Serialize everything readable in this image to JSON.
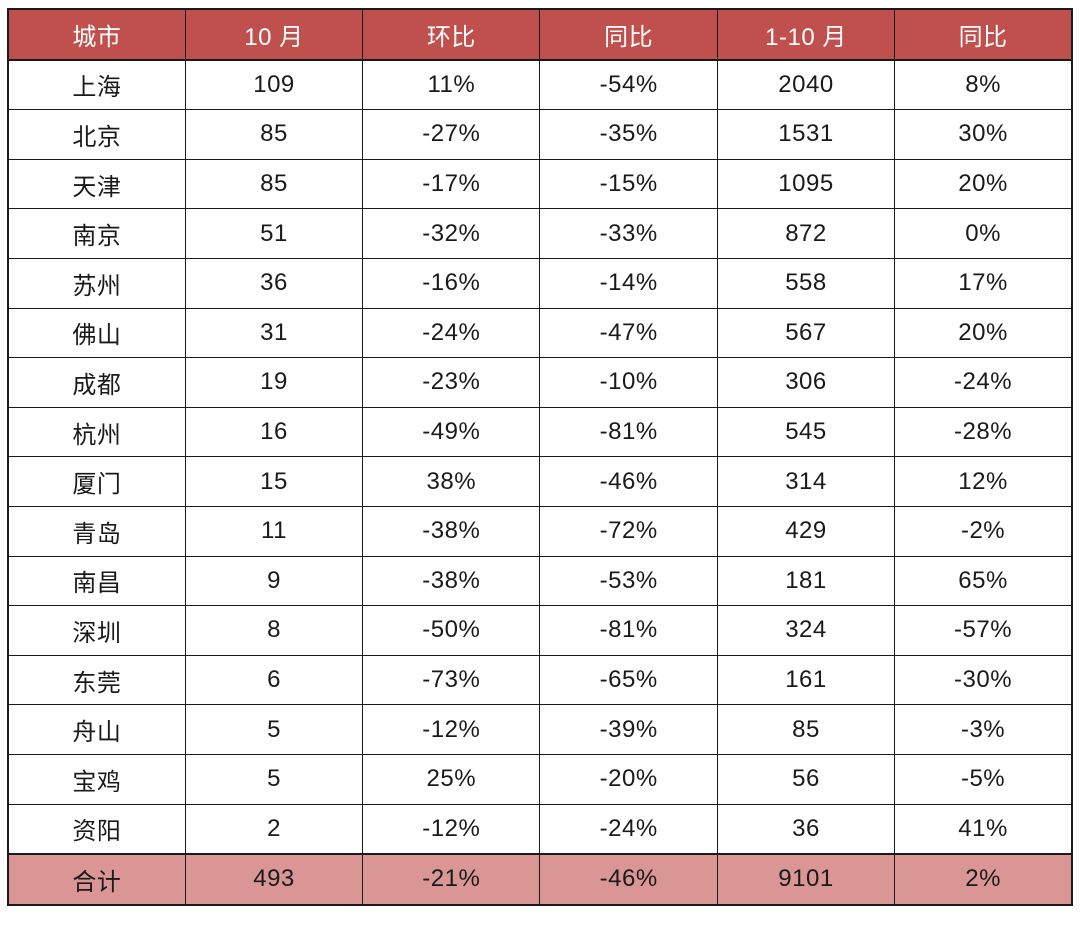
{
  "chart_data": {
    "type": "table",
    "title": "",
    "columns": [
      "城市",
      "10 月",
      "环比",
      "同比",
      "1-10 月",
      "同比"
    ],
    "rows": [
      [
        "上海",
        "109",
        "11%",
        "-54%",
        "2040",
        "8%"
      ],
      [
        "北京",
        "85",
        "-27%",
        "-35%",
        "1531",
        "30%"
      ],
      [
        "天津",
        "85",
        "-17%",
        "-15%",
        "1095",
        "20%"
      ],
      [
        "南京",
        "51",
        "-32%",
        "-33%",
        "872",
        "0%"
      ],
      [
        "苏州",
        "36",
        "-16%",
        "-14%",
        "558",
        "17%"
      ],
      [
        "佛山",
        "31",
        "-24%",
        "-47%",
        "567",
        "20%"
      ],
      [
        "成都",
        "19",
        "-23%",
        "-10%",
        "306",
        "-24%"
      ],
      [
        "杭州",
        "16",
        "-49%",
        "-81%",
        "545",
        "-28%"
      ],
      [
        "厦门",
        "15",
        "38%",
        "-46%",
        "314",
        "12%"
      ],
      [
        "青岛",
        "11",
        "-38%",
        "-72%",
        "429",
        "-2%"
      ],
      [
        "南昌",
        "9",
        "-38%",
        "-53%",
        "181",
        "65%"
      ],
      [
        "深圳",
        "8",
        "-50%",
        "-81%",
        "324",
        "-57%"
      ],
      [
        "东莞",
        "6",
        "-73%",
        "-65%",
        "161",
        "-30%"
      ],
      [
        "舟山",
        "5",
        "-12%",
        "-39%",
        "85",
        "-3%"
      ],
      [
        "宝鸡",
        "5",
        "25%",
        "-20%",
        "56",
        "-5%"
      ],
      [
        "资阳",
        "2",
        "-12%",
        "-24%",
        "36",
        "41%"
      ]
    ],
    "total_row": [
      "合计",
      "493",
      "-21%",
      "-46%",
      "9101",
      "2%"
    ],
    "grid": true,
    "legend_position": "none"
  },
  "colors": {
    "header_bg": "#c0504d",
    "header_text": "#ffffff",
    "total_bg": "#d99694",
    "body_bg": "#ffffff",
    "body_text": "#1a1a1a",
    "border": "#1a1a1a"
  }
}
